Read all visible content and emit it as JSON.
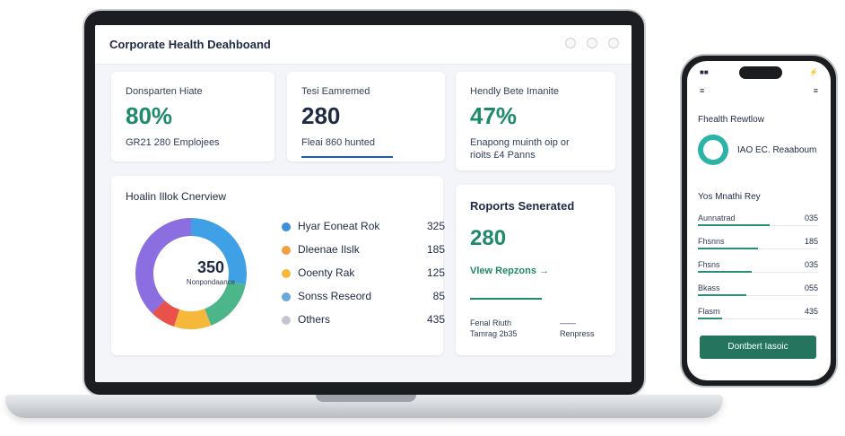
{
  "dashboard": {
    "title": "Corporate Health Deahboand",
    "stats": [
      {
        "label": "Donsparten Hiate",
        "value": "80%",
        "sub": "GR21 280 Emplojees"
      },
      {
        "label": "Tesi Eamremed",
        "value": "280",
        "sub": "Fleai 860 hunted"
      },
      {
        "label": "Hendly Bete Imanite",
        "value": "47%",
        "sub": "Enapong muinth oip or\nrioits £4 Panns"
      }
    ],
    "overview": {
      "title": "Hoalin Illok Cnerview",
      "donut_value": "350",
      "donut_label": "Nonpondaance",
      "legend": [
        {
          "label": "Hyar Eoneat Rok",
          "value": "325",
          "color": "#3f8fd8"
        },
        {
          "label": "Dleenae Ilslk",
          "value": "185",
          "color": "#f0a040"
        },
        {
          "label": "Ooenty Rak",
          "value": "125",
          "color": "#f5b83a"
        },
        {
          "label": "Sonss Reseord",
          "value": "85",
          "color": "#6aa8d8"
        },
        {
          "label": "Others",
          "value": "435",
          "color": "#c4c8ce"
        }
      ]
    },
    "reports": {
      "title": "Roports Senerated",
      "value": "280",
      "link": "Vlew Repzons",
      "foot_a_1": "Fenal Riuth",
      "foot_a_2": "Tamrag 2b35",
      "foot_b_1": "——",
      "foot_b_2": "Renpress"
    }
  },
  "chart_data": {
    "type": "pie",
    "categories": [
      "Hyar Eoneat Rok",
      "Dleenae Ilslk",
      "Ooenty Rak",
      "Sonss Reseord",
      "Others"
    ],
    "values": [
      325,
      185,
      125,
      85,
      435
    ],
    "title": "Hoalin Illok Cnerview",
    "ring_colors": [
      "#3fa0e6",
      "#4cb58a",
      "#f5b83a",
      "#e8524a",
      "#8b6ee0"
    ]
  },
  "phone": {
    "status_left": "■■",
    "status_right": "⚡",
    "menu_left": "≡",
    "menu_right": "≡",
    "title": "Fhealth Rewtlow",
    "ring_label": "IAO EC. Reaaboum",
    "section": "Yos Mnathi Rey",
    "rows": [
      {
        "label": "Aunnatrad",
        "value": "035",
        "fill": 0.6
      },
      {
        "label": "Fhsnns",
        "value": "185",
        "fill": 0.5
      },
      {
        "label": "Fhsns",
        "value": "035",
        "fill": 0.45
      },
      {
        "label": "Bkass",
        "value": "055",
        "fill": 0.4
      },
      {
        "label": "Flasm",
        "value": "435",
        "fill": 0.2
      }
    ],
    "button": "Dontbert Iasoic"
  }
}
